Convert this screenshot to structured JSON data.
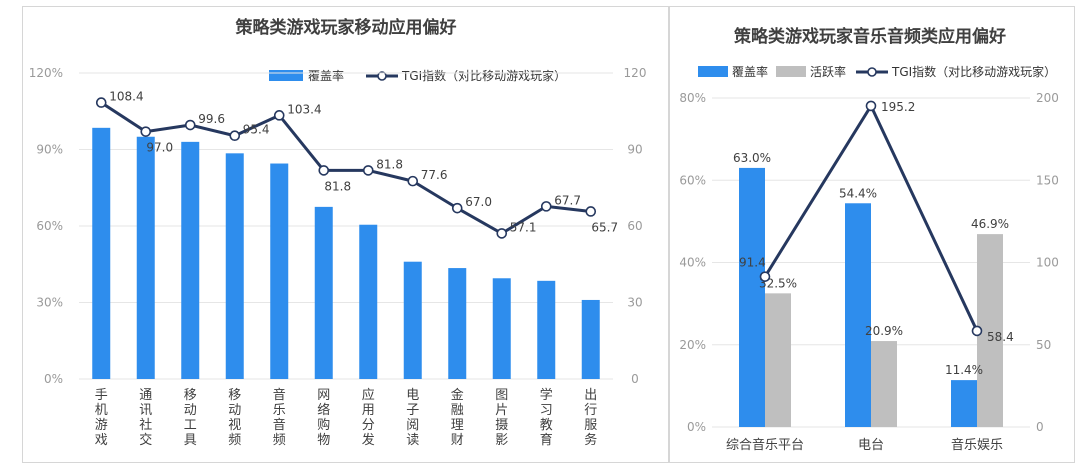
{
  "colors": {
    "bar": "#2e8ded",
    "bar2": "#bfbfbf",
    "line": "#26385f",
    "grid": "#e6e6e6"
  },
  "chart_data": [
    {
      "type": "bar",
      "title": "策略类游戏玩家移动应用偏好",
      "categories": [
        "手机游戏",
        "通讯社交",
        "移动工具",
        "移动视频",
        "音乐音频",
        "网络购物",
        "应用分发",
        "电子阅读",
        "金融理财",
        "图片摄影",
        "学习教育",
        "出行服务"
      ],
      "y_ticks": [
        "0%",
        "30%",
        "60%",
        "90%",
        "120%"
      ],
      "y2_ticks": [
        "0",
        "30",
        "60",
        "90",
        "120"
      ],
      "ylim": [
        0,
        120
      ],
      "y2lim": [
        0,
        120
      ],
      "legend": [
        "覆盖率",
        "TGI指数（对比移动游戏玩家）"
      ],
      "series": [
        {
          "name": "覆盖率",
          "kind": "bar",
          "axis": "left",
          "values": [
            98.5,
            95.0,
            93.0,
            88.5,
            84.5,
            67.5,
            60.5,
            46.0,
            43.5,
            39.5,
            38.5,
            31.0
          ]
        },
        {
          "name": "TGI指数（对比移动游戏玩家）",
          "kind": "line",
          "axis": "right",
          "values": [
            108.4,
            97.0,
            99.6,
            95.4,
            103.4,
            81.8,
            81.8,
            77.6,
            67.0,
            57.1,
            67.7,
            65.7
          ],
          "labels": [
            "108.4",
            "97.0",
            "99.6",
            "95.4",
            "103.4",
            "81.8",
            "81.8",
            "77.6",
            "67.0",
            "57.1",
            "67.7",
            "65.7"
          ]
        }
      ]
    },
    {
      "type": "bar",
      "title": "策略类游戏玩家音乐音频类应用偏好",
      "categories": [
        "综合音乐平台",
        "电台",
        "音乐娱乐"
      ],
      "y_ticks": [
        "0%",
        "20%",
        "40%",
        "60%",
        "80%"
      ],
      "y2_ticks": [
        "0",
        "50",
        "100",
        "150",
        "200"
      ],
      "ylim": [
        0,
        80
      ],
      "y2lim": [
        0,
        200
      ],
      "legend": [
        "覆盖率",
        "活跃率",
        "TGI指数（对比移动游戏玩家）"
      ],
      "series": [
        {
          "name": "覆盖率",
          "kind": "bar",
          "axis": "left",
          "values": [
            63.0,
            54.4,
            11.4
          ],
          "labels": [
            "63.0%",
            "54.4%",
            "11.4%"
          ]
        },
        {
          "name": "活跃率",
          "kind": "bar",
          "axis": "left",
          "values": [
            32.5,
            20.9,
            46.9
          ],
          "labels": [
            "32.5%",
            "20.9%",
            "46.9%"
          ]
        },
        {
          "name": "TGI指数（对比移动游戏玩家）",
          "kind": "line",
          "axis": "right",
          "values": [
            91.4,
            195.2,
            58.4
          ],
          "labels": [
            "91.4",
            "195.2",
            "58.4"
          ]
        }
      ]
    }
  ]
}
